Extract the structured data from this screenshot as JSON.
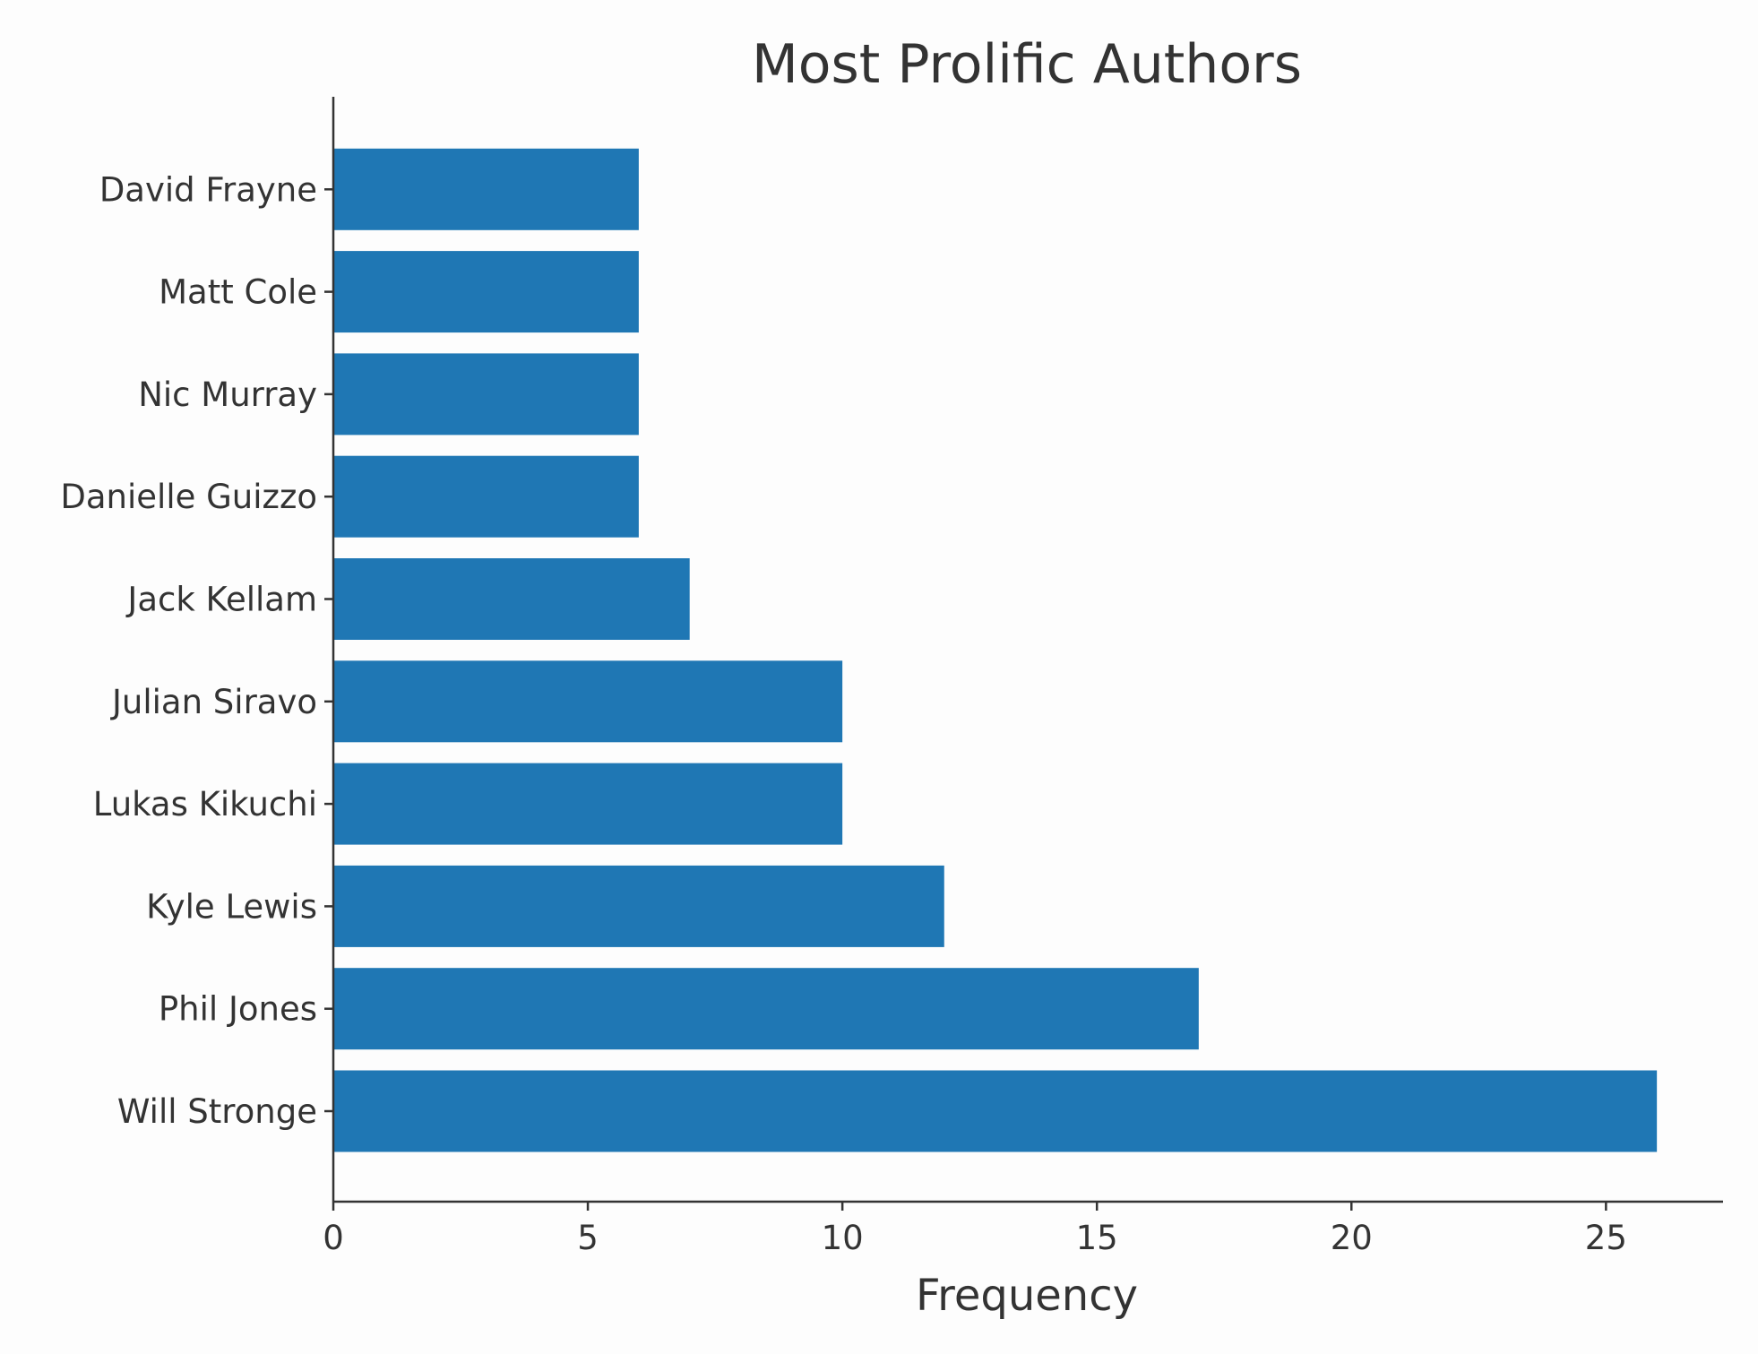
{
  "chart_data": {
    "type": "bar",
    "orientation": "horizontal",
    "title": "Most Prolific Authors",
    "xlabel": "Frequency",
    "ylabel": "",
    "categories": [
      "Will Stronge",
      "Phil Jones",
      "Kyle Lewis",
      "Lukas Kikuchi",
      "Julian Siravo",
      "Jack Kellam",
      "Danielle Guizzo",
      "Nic Murray",
      "Matt Cole",
      "David Frayne"
    ],
    "values": [
      26,
      17,
      12,
      10,
      10,
      7,
      6,
      6,
      6,
      6
    ],
    "xlim": [
      0,
      27.3
    ],
    "xticks": [
      0,
      5,
      10,
      15,
      20,
      25
    ],
    "grid": false,
    "legend": "none",
    "bar_color": "#1f77b4"
  }
}
